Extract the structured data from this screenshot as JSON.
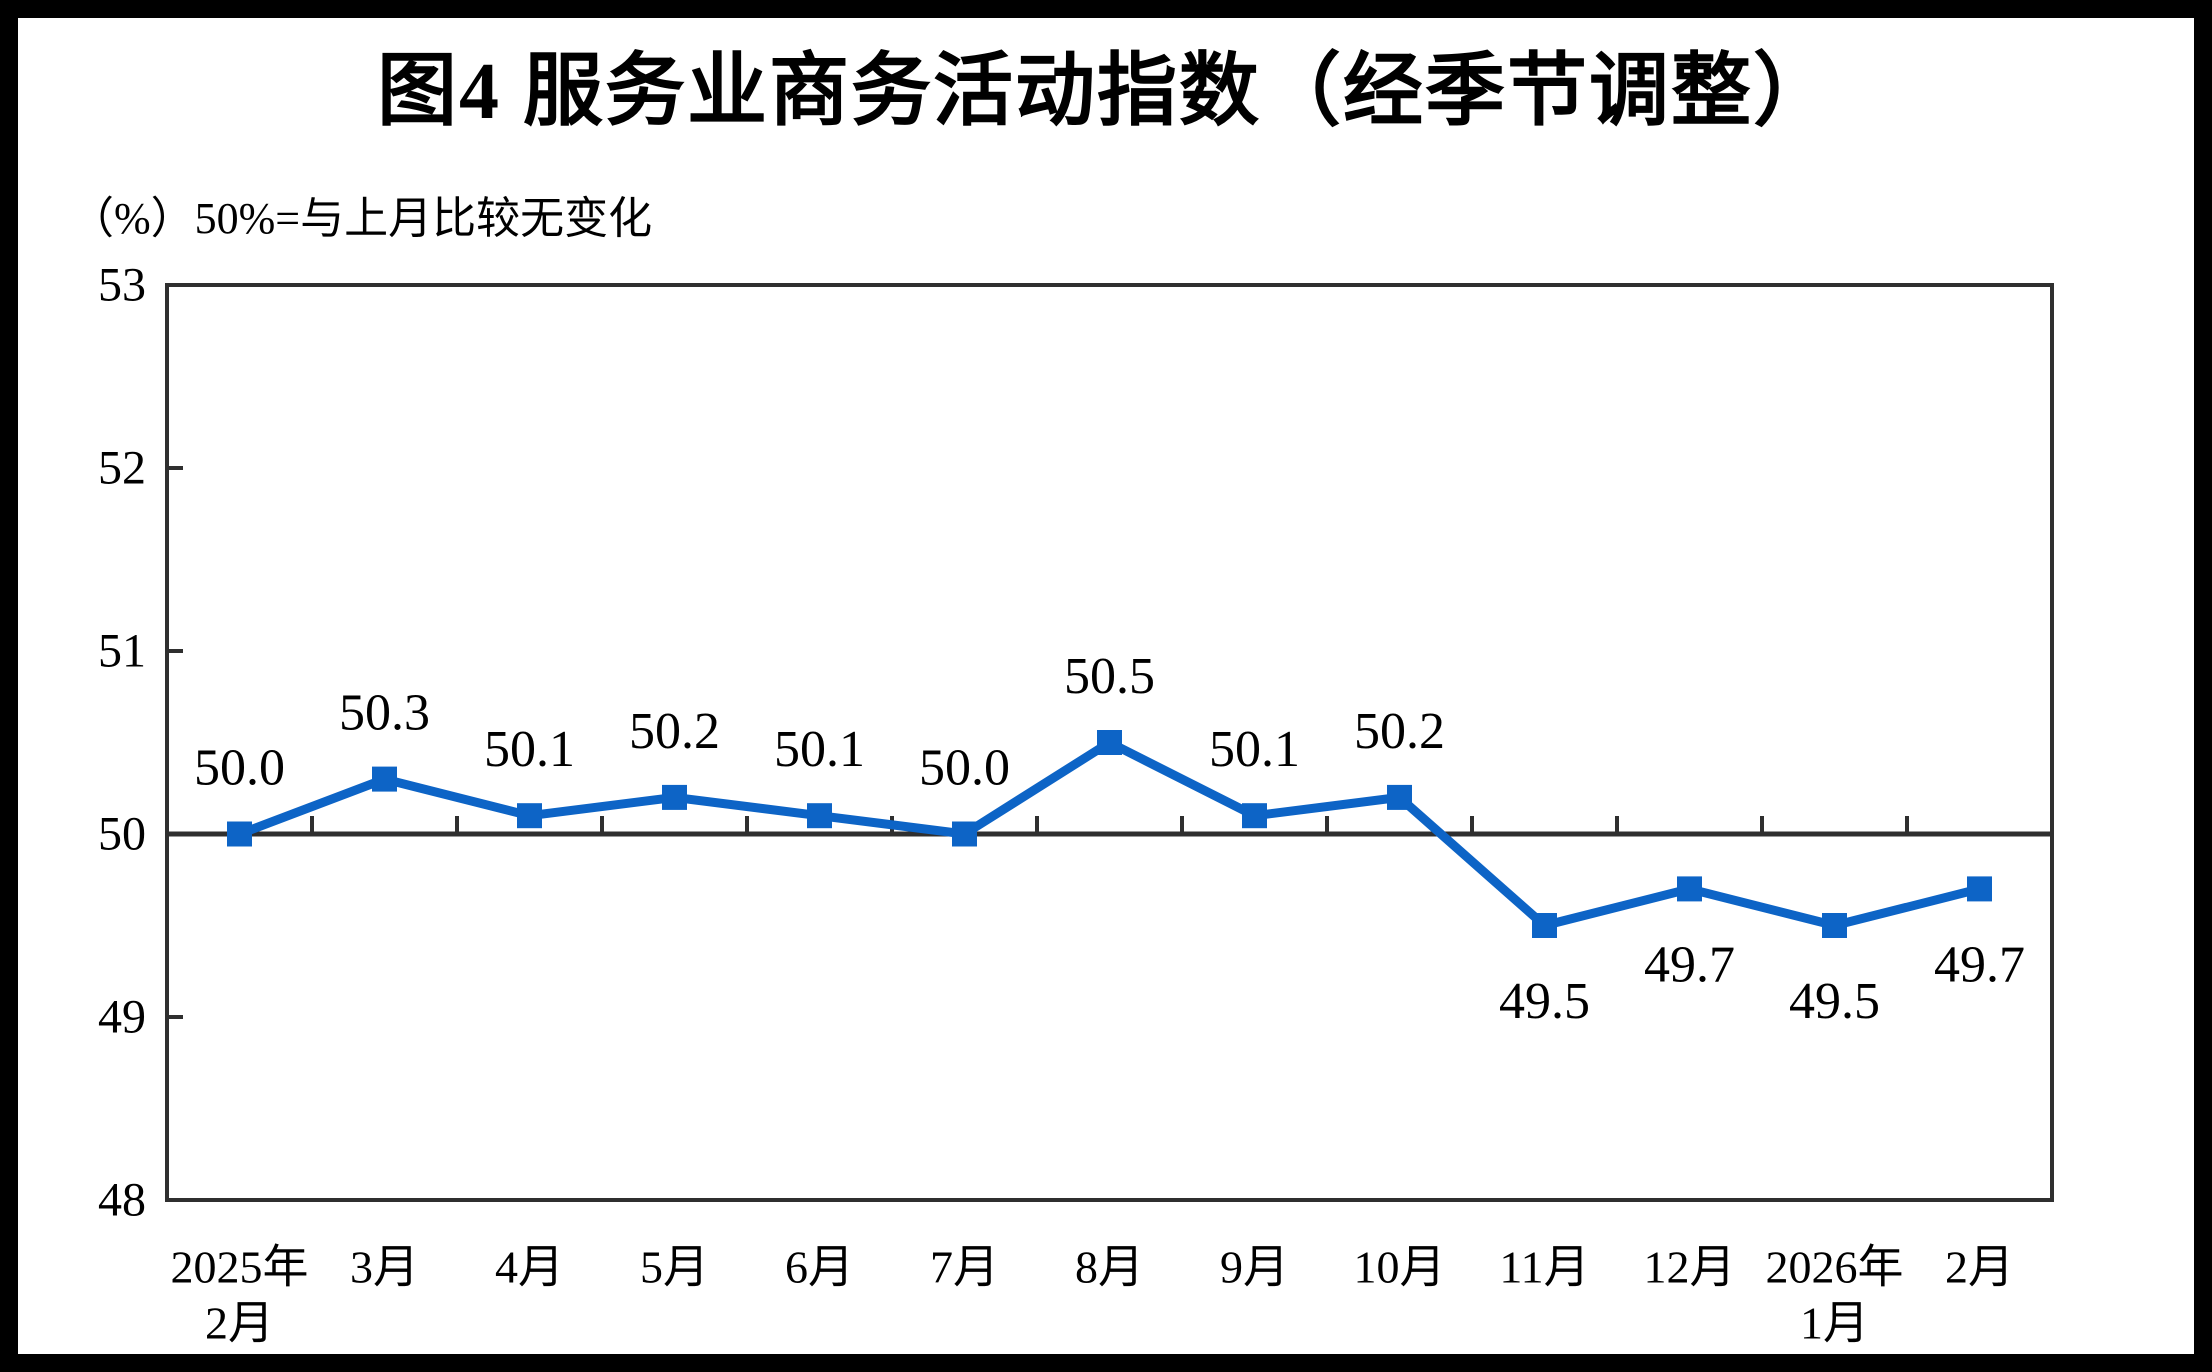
{
  "figure": {
    "title": "图4  服务业商务活动指数（经季节调整）",
    "subtitle": "（%）50%=与上月比较无变化"
  },
  "chart_data": {
    "type": "line",
    "title": "图4  服务业商务活动指数（经季节调整）",
    "subtitle": "（%）50%=与上月比较无变化",
    "unit": "%",
    "categories": [
      "2025年\n2月",
      "3月",
      "4月",
      "5月",
      "6月",
      "7月",
      "8月",
      "9月",
      "10月",
      "11月",
      "12月",
      "2026年\n1月",
      "2月"
    ],
    "series": [
      {
        "name": "服务业商务活动指数（经季节调整）",
        "values": [
          50.0,
          50.3,
          50.1,
          50.2,
          50.1,
          50.0,
          50.5,
          50.1,
          50.2,
          49.5,
          49.7,
          49.5,
          49.7
        ]
      }
    ],
    "data_labels": [
      "50.0",
      "50.3",
      "50.1",
      "50.2",
      "50.1",
      "50.0",
      "50.5",
      "50.1",
      "50.2",
      "49.5",
      "49.7",
      "49.5",
      "49.7"
    ],
    "ylim": [
      48,
      53
    ],
    "yticks": [
      48,
      49,
      50,
      51,
      52,
      53
    ],
    "reference_line": 50,
    "grid": false,
    "legend_position": "none",
    "colors": {
      "line": "#0D64C6",
      "marker": "#0D64C6",
      "axis": "#2F2F2F",
      "text": "#000000",
      "background": "#FFFFFF",
      "outer_border": "#000000"
    }
  }
}
